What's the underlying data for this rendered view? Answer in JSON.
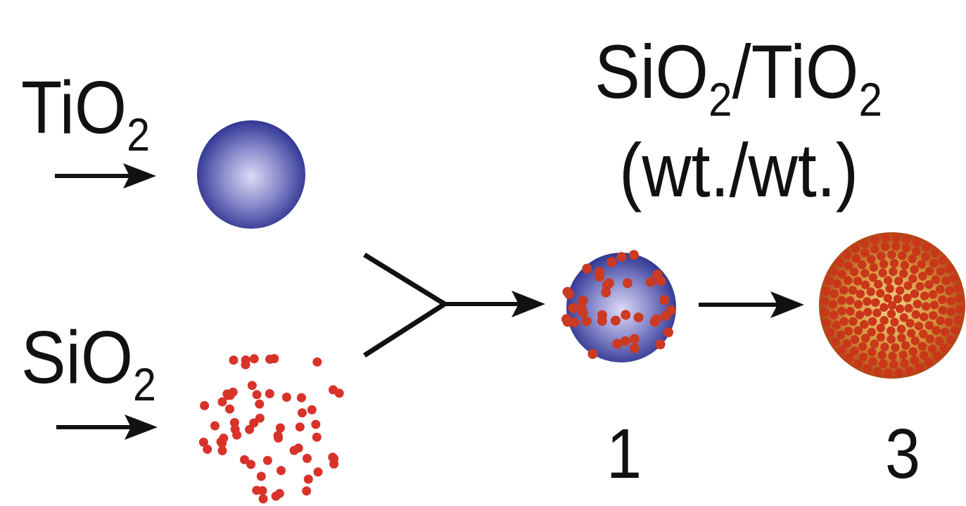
{
  "labels": {
    "tio2_main": "TiO",
    "tio2_sub": "2",
    "sio2_main": "SiO",
    "sio2_sub": "2",
    "ratio_left_main": "SiO",
    "ratio_left_sub": "2",
    "ratio_slash": "/TiO",
    "ratio_right_sub": "2",
    "ratio_units": "(wt./wt.)",
    "ratio_value_1": "1",
    "ratio_value_3": "3"
  },
  "colors": {
    "tio2_sphere_center": "#d8d6f2",
    "tio2_sphere_edge": "#2a2f8f",
    "sio2_particle": "#d8322a",
    "coated_core_center": "#e8c070",
    "coated_core_edge": "#b8320f",
    "arrow": "#111111"
  }
}
